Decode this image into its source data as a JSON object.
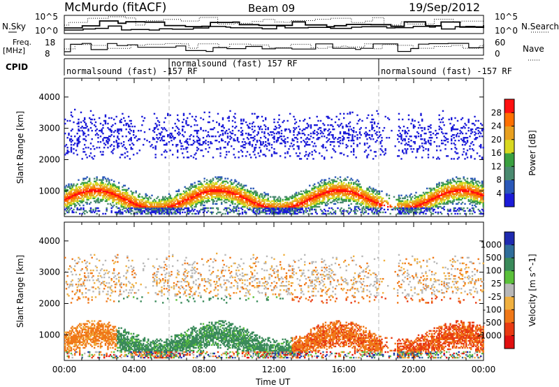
{
  "header": {
    "station": "McMurdo (fitACF)",
    "beam": "Beam 09",
    "date": "19/Sep/2012"
  },
  "params": {
    "nsky_label": "N.Sky",
    "nsearch_label": "N.Search",
    "freq_label_1": "Freq.",
    "freq_label_2": "[MHz]",
    "nave_label": "Nave",
    "cpid_label": "CPID",
    "left_ticks_top": [
      "10^5",
      "10^0"
    ],
    "right_ticks_top": [
      "10^5",
      "10^0"
    ],
    "left_ticks_freq": [
      "18",
      "8"
    ],
    "right_ticks_nave": [
      "60",
      "0"
    ],
    "cpid_segments": [
      {
        "text": "normalsound (fast) -157 RF",
        "start_hour": 0
      },
      {
        "text": "normalsound (fast) 157 RF",
        "start_hour": 6
      },
      {
        "text": "normalsound (fast) -157 RF",
        "start_hour": 18
      }
    ]
  },
  "chart_data": [
    {
      "type": "heatmap",
      "panel": "power",
      "ylabel": "Slant Range [km]",
      "yticks": [
        "1000",
        "2000",
        "3000",
        "4000"
      ],
      "ylim": [
        180,
        4600
      ],
      "xlim_hours": [
        0,
        24
      ],
      "colorbar_title": "Power [dB]",
      "colorbar_ticks": [
        "4",
        "8",
        "12",
        "16",
        "20",
        "24",
        "28"
      ],
      "colorbar_colors": [
        "#1b1bd8",
        "#2a58b8",
        "#4a8a70",
        "#3aa040",
        "#d8d820",
        "#e8a020",
        "#ff7000",
        "#ff1010"
      ]
    },
    {
      "type": "heatmap",
      "panel": "velocity",
      "ylabel": "Slant Range [km]",
      "yticks": [
        "1000",
        "2000",
        "3000",
        "4000"
      ],
      "ylim": [
        180,
        4600
      ],
      "xlim_hours": [
        0,
        24
      ],
      "colorbar_title": "Velocity [m s^-1]",
      "colorbar_ticks": [
        "1000",
        "500",
        "100",
        "25",
        "-25",
        "-100",
        "-500",
        "-1000"
      ],
      "colorbar_colors": [
        "#1e2ab0",
        "#2f6d9a",
        "#3a8a5a",
        "#5ac03a",
        "#b8b8b8",
        "#f0b040",
        "#f07818",
        "#e83a12",
        "#e01010"
      ]
    }
  ],
  "xaxis": {
    "ticks": [
      "00:00",
      "04:00",
      "08:00",
      "12:00",
      "16:00",
      "20:00",
      "00:00"
    ],
    "label": "Time UT"
  }
}
